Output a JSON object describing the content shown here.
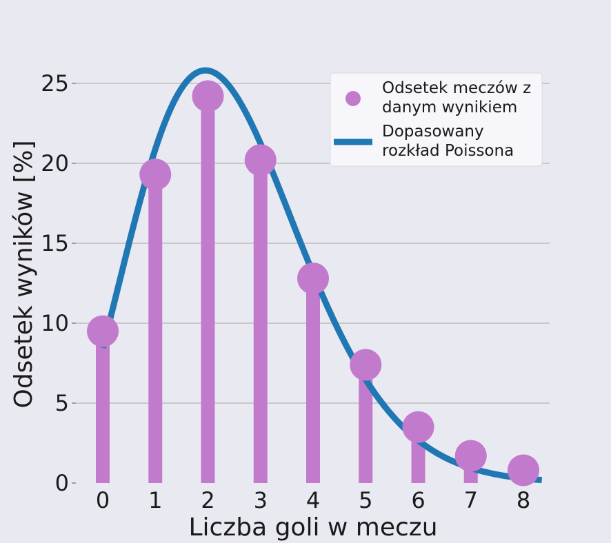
{
  "chart_data": {
    "type": "bar",
    "title": "",
    "xlabel": "Liczba goli w meczu",
    "ylabel": "Odsetek wyników [%]",
    "xlim": [
      -0.5,
      8.35
    ],
    "ylim": [
      0,
      25
    ],
    "x_ticks": [
      "0",
      "1",
      "2",
      "3",
      "4",
      "5",
      "6",
      "7",
      "8"
    ],
    "y_ticks": [
      "0",
      "5",
      "10",
      "15",
      "20",
      "25"
    ],
    "grid": "horizontal",
    "legend_position": "top-right",
    "series": [
      {
        "name": "Odsetek meczów z danym wynikiem",
        "legend_lines": [
          "Odsetek meczów z",
          "danym wynikiem"
        ],
        "style": "lollipop",
        "color": "#c27bcc",
        "x": [
          0,
          1,
          2,
          3,
          4,
          5,
          6,
          7,
          8
        ],
        "values": [
          9.5,
          19.3,
          24.2,
          20.2,
          12.8,
          7.4,
          3.5,
          1.7,
          0.8
        ]
      },
      {
        "name": "Dopasowany rozkład Poissona",
        "legend_lines": [
          "Dopasowany",
          "rozkład Poissona"
        ],
        "style": "line",
        "color": "#1f77b4",
        "lambda": 2.47,
        "x_range": [
          0,
          8.35
        ]
      }
    ]
  }
}
